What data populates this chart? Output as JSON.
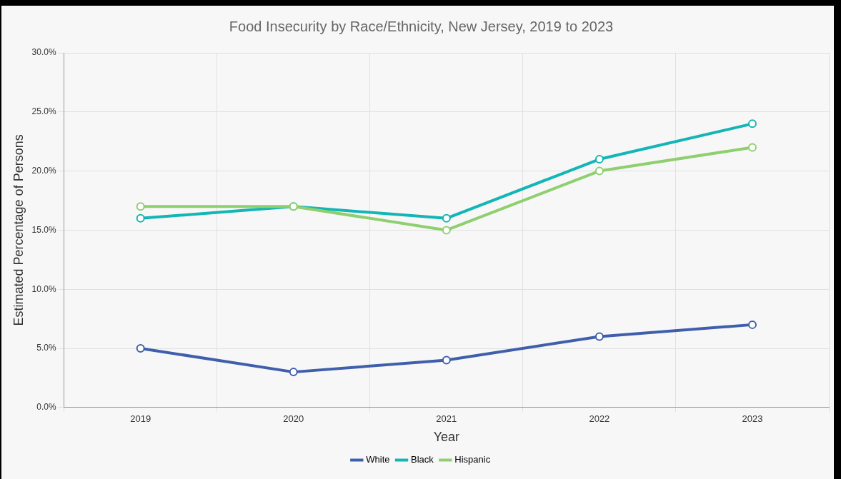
{
  "chart_data": {
    "type": "line",
    "title": "Food Insecurity by Race/Ethnicity, New Jersey, 2019 to 2023",
    "xlabel": "Year",
    "ylabel": "Estimated Percentage of Persons",
    "categories": [
      "2019",
      "2020",
      "2021",
      "2022",
      "2023"
    ],
    "series": [
      {
        "name": "White",
        "color": "#3f5fad",
        "values": [
          5,
          3,
          4,
          6,
          7
        ]
      },
      {
        "name": "Black",
        "color": "#13b5b5",
        "values": [
          16,
          17,
          16,
          21,
          24
        ]
      },
      {
        "name": "Hispanic",
        "color": "#8fcf6f",
        "values": [
          17,
          17,
          15,
          20,
          22
        ]
      }
    ],
    "ylim": [
      0,
      30
    ],
    "yticks": [
      {
        "value": 0,
        "label": "0.0%"
      },
      {
        "value": 5,
        "label": "5.0%"
      },
      {
        "value": 10,
        "label": "10.0%"
      },
      {
        "value": 15,
        "label": "15.0%"
      },
      {
        "value": 20,
        "label": "20.0%"
      },
      {
        "value": 25,
        "label": "25.0%"
      },
      {
        "value": 30,
        "label": "30.0%"
      }
    ],
    "grid": true,
    "legend": "bottom",
    "marker": "circle",
    "line_style": "solid"
  }
}
